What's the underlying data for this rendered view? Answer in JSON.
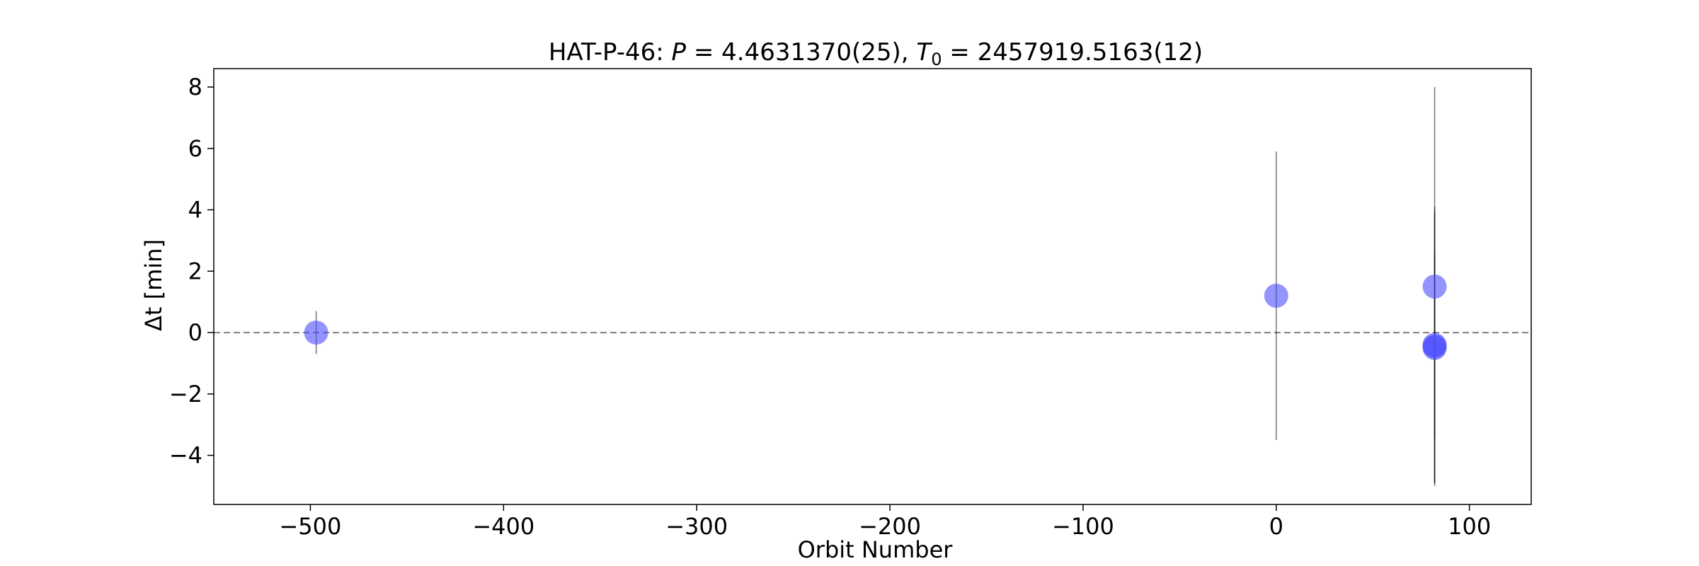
{
  "chart_data": {
    "type": "scatter",
    "title": {
      "prefix": "HAT-P-46: ",
      "p_symbol": "P",
      "p_value": " = 4.4631370(25), ",
      "t_symbol": "T",
      "t_subscript": "0",
      "t_value": " = 2457919.5163(12)"
    },
    "xlabel": "Orbit Number",
    "ylabel": "Δt [min]",
    "xlim": [
      -550,
      132
    ],
    "ylim": [
      -5.6,
      8.6
    ],
    "xticks": [
      -500,
      -400,
      -300,
      -200,
      -100,
      0,
      100
    ],
    "yticks": [
      -4,
      -2,
      0,
      2,
      4,
      6,
      8
    ],
    "reference_line": {
      "y": 0,
      "style": "dashed",
      "color": "#808080"
    },
    "marker_color": "#4d4dff",
    "errorbar_color": "#000000",
    "points": [
      {
        "x": -497,
        "y": 0.0,
        "yerr_low": 0.7,
        "yerr_high": 0.7
      },
      {
        "x": 0,
        "y": 1.2,
        "yerr_low": 4.7,
        "yerr_high": 4.7
      },
      {
        "x": 82,
        "y": 1.5,
        "yerr_low": 6.5,
        "yerr_high": 6.5
      },
      {
        "x": 82,
        "y": -0.4,
        "yerr_low": 4.5,
        "yerr_high": 4.5
      },
      {
        "x": 82,
        "y": -0.5,
        "yerr_low": 4.4,
        "yerr_high": 4.4
      },
      {
        "x": 82,
        "y": -0.45,
        "yerr_low": 3.0,
        "yerr_high": 3.0
      }
    ]
  }
}
